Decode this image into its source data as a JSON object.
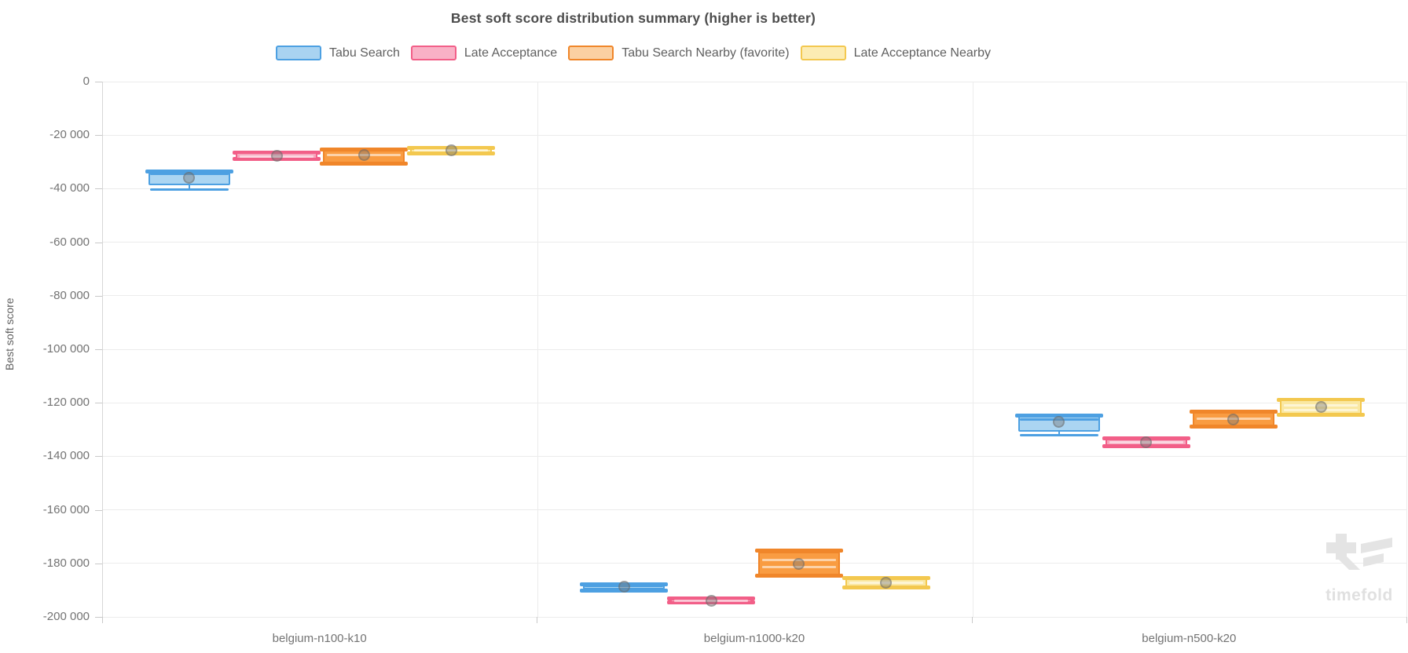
{
  "title": "Best soft score distribution summary (higher is better)",
  "watermark": "timefold",
  "y_axis": {
    "label": "Best soft score"
  },
  "chart_data": {
    "type": "boxplot",
    "title": "Best soft score distribution summary (higher is better)",
    "xlabel": "",
    "ylabel": "Best soft score",
    "ylim": [
      -200000,
      0
    ],
    "grid": true,
    "legend_position": "top",
    "categories": [
      "belgium-n100-k10",
      "belgium-n1000-k20",
      "belgium-n500-k20"
    ],
    "y_ticks": [
      {
        "v": 0,
        "label": "0"
      },
      {
        "v": -20000,
        "label": "-20 000"
      },
      {
        "v": -40000,
        "label": "-40 000"
      },
      {
        "v": -60000,
        "label": "-60 000"
      },
      {
        "v": -80000,
        "label": "-80 000"
      },
      {
        "v": -100000,
        "label": "-100 000"
      },
      {
        "v": -120000,
        "label": "-120 000"
      },
      {
        "v": -140000,
        "label": "-140 000"
      },
      {
        "v": -160000,
        "label": "-160 000"
      },
      {
        "v": -180000,
        "label": "-180 000"
      },
      {
        "v": -200000,
        "label": "-200 000"
      }
    ],
    "series": [
      {
        "name": "Tabu Search",
        "border_color": "#4da0e2",
        "fill_color": "#abd5f2",
        "legend_fill": "#a9d3f1",
        "median_style": "dark",
        "boxes": [
          {
            "min": -40200,
            "q1": -38700,
            "median": -34600,
            "q3": -33700,
            "max": -33600,
            "mean": -35800
          },
          {
            "min": -190300,
            "q1": -189700,
            "median": -188400,
            "q3": -188000,
            "max": -187900,
            "mean": -188800
          },
          {
            "min": -132100,
            "q1": -130800,
            "median": -126200,
            "q3": -124900,
            "max": -124800,
            "mean": -127200
          }
        ]
      },
      {
        "name": "Late Acceptance",
        "border_color": "#f25f88",
        "fill_color": "#f7a6bd",
        "legend_fill": "#f9b1c6",
        "median_style": "light",
        "boxes": [
          {
            "min": -29000,
            "q1": -28900,
            "median": -28100,
            "q3": -26500,
            "max": -26400,
            "mean": -27700
          },
          {
            "min": -194600,
            "q1": -194500,
            "median": -193900,
            "q3": -193200,
            "max": -193100,
            "mean": -193900
          },
          {
            "min": -136100,
            "q1": -136000,
            "median": -134800,
            "q3": -133500,
            "max": -133400,
            "mean": -134700
          }
        ]
      },
      {
        "name": "Tabu Search Nearby (favorite)",
        "border_color": "#f0862a",
        "fill_color": "#f99c42",
        "legend_fill": "#fbd0a2",
        "median_style": "light",
        "boxes": [
          {
            "min": -30500,
            "q1": -30400,
            "median": -27400,
            "q3": -25500,
            "max": -25400,
            "mean": -27500
          },
          {
            "min": -184700,
            "q1": -184400,
            "median": -178800,
            "q3": -175600,
            "max": -175300,
            "mean": -180300,
            "line2": -181500
          },
          {
            "min": -128900,
            "q1": -128800,
            "median": -126000,
            "q3": -123500,
            "max": -123400,
            "mean": -126100
          }
        ]
      },
      {
        "name": "Late Acceptance Nearby",
        "border_color": "#f3c84f",
        "fill_color": "#fae8a2",
        "legend_fill": "#fcecb3",
        "median_style": "light",
        "boxes": [
          {
            "min": -26800,
            "q1": -26700,
            "median": -25800,
            "q3": -25000,
            "max": -24900,
            "mean": -25700
          },
          {
            "min": -189100,
            "q1": -189000,
            "median": -187200,
            "q3": -185600,
            "max": -185500,
            "mean": -187300
          },
          {
            "min": -124400,
            "q1": -124300,
            "median": -121100,
            "q3": -118900,
            "max": -118800,
            "mean": -121500,
            "line2": -122600
          }
        ]
      }
    ]
  }
}
